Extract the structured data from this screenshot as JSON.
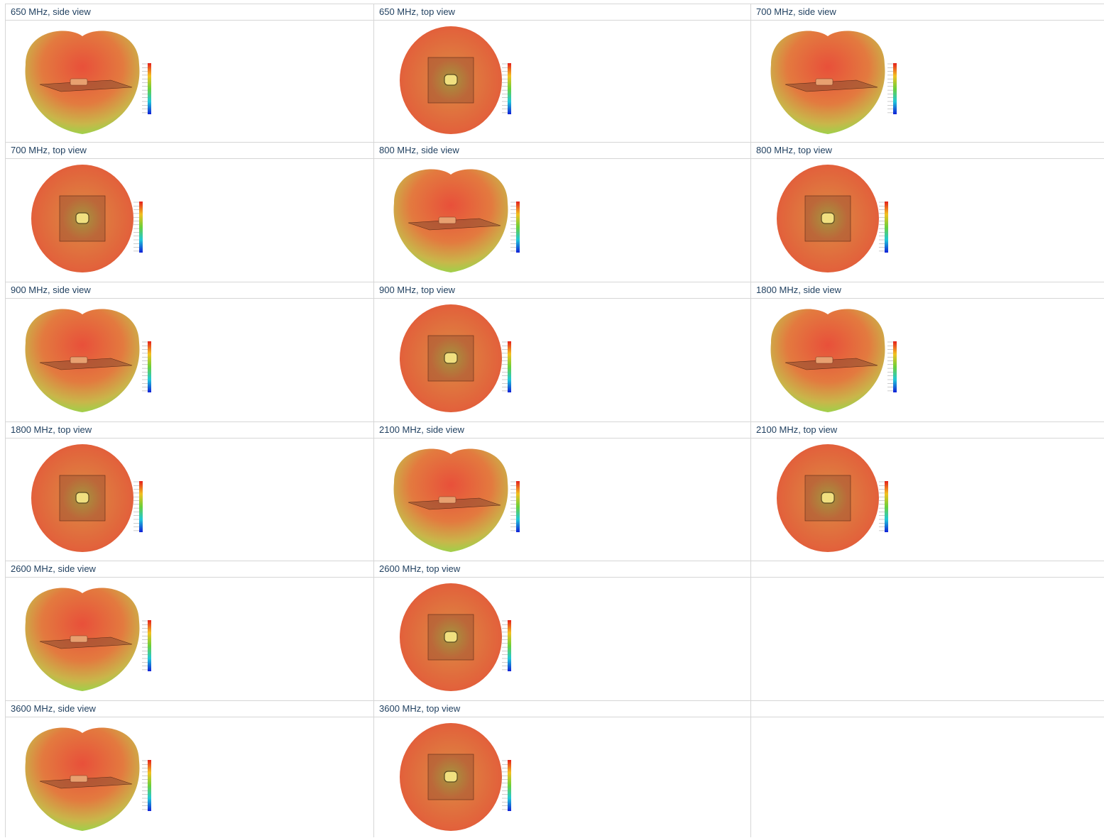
{
  "table": {
    "rows": [
      [
        "650 MHz, side view",
        "650 MHz, top view",
        "700 MHz, side view"
      ],
      [
        "700 MHz, top view",
        "800 MHz, side view",
        "800 MHz, top view"
      ],
      [
        "900 MHz, side view",
        "900 MHz, top view",
        "1800 MHz, side view"
      ],
      [
        "1800 MHz, top view",
        "2100 MHz, side view",
        "2100 MHz, top view"
      ],
      [
        "2600 MHz, side view",
        "2600 MHz, top view"
      ],
      [
        "3600 MHz, side view",
        "3600 MHz, top view"
      ]
    ]
  }
}
